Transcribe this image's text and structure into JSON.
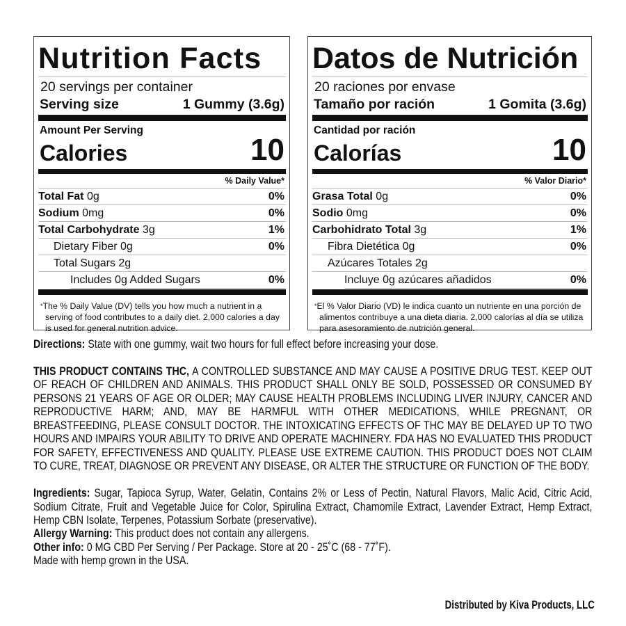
{
  "english": {
    "title": "Nutrition Facts",
    "servings": "20 servings per container",
    "serving_size_label": "Serving size",
    "serving_size_value": "1 Gummy (3.6g)",
    "amount_per_serving": "Amount Per Serving",
    "calories_label": "Calories",
    "calories_value": "10",
    "dv_header": "% Daily Value*",
    "rows": [
      {
        "label": "Total Fat",
        "amount": "0g",
        "dv": "0%"
      },
      {
        "label": "Sodium",
        "amount": "0mg",
        "dv": "0%"
      },
      {
        "label": "Total Carbohydrate",
        "amount": "3g",
        "dv": "1%"
      },
      {
        "label": "Dietary Fiber 0g",
        "dv": "0%"
      },
      {
        "label": "Total Sugars 2g"
      },
      {
        "label": "Includes 0g Added Sugars",
        "dv": "0%"
      }
    ],
    "footnote": "The % Daily Value (DV) tells you how much a nutrient in a serving of food contributes to a daily diet. 2,000 calories a day is used for general nutrition advice."
  },
  "spanish": {
    "title": "Datos de Nutrición",
    "servings": "20 raciones por envase",
    "serving_size_label": "Tamaño por ración",
    "serving_size_value": "1 Gomita (3.6g)",
    "amount_per_serving": "Cantidad por ración",
    "calories_label": "Calorías",
    "calories_value": "10",
    "dv_header": "% Valor Diario*",
    "rows": [
      {
        "label": "Grasa Total",
        "amount": "0g",
        "dv": "0%"
      },
      {
        "label": "Sodio",
        "amount": "0mg",
        "dv": "0%"
      },
      {
        "label": "Carbohidrato Total",
        "amount": "3g",
        "dv": "1%"
      },
      {
        "label": "Fibra Dietética 0g",
        "dv": "0%"
      },
      {
        "label": "Azúcares Totales 2g"
      },
      {
        "label": "Incluye 0g azúcares añadidos",
        "dv": "0%"
      }
    ],
    "footnote": "El % Valor Diario (VD) le indica cuanto un nutriente en una porción de alimentos contribuye a una dieta diaria. 2,000 calorías al día se utiliza para asesoramiento de nutrición general."
  },
  "directions": {
    "label": "Directions:",
    "text": "State with one gummy, wait two hours for full effect before increasing your dose."
  },
  "warning": {
    "label": "THIS PRODUCT CONTAINS THC,",
    "text": "A CONTROLLED SUBSTANCE AND MAY CAUSE A POSITIVE DRUG TEST. KEEP OUT OF REACH OF CHILDREN AND ANIMALS. THIS PRODUCT SHALL ONLY BE SOLD, POSSESSED OR CONSUMED BY PERSONS 21 YEARS OF AGE OR OLDER; MAY CAUSE HEALTH PROBLEMS INCLUDING LIVER INJURY, CANCER AND REPRODUCTIVE HARM; AND, MAY BE HARMFUL WITH OTHER MEDICATIONS, WHILE PREGNANT, OR BREASTFEEDING, PLEASE CONSULT DOCTOR. THE INTOXICATING EFFECTS OF THC MAY BE DELAYED UP TO TWO HOURS AND IMPAIRS YOUR ABILITY TO DRIVE AND OPERATE MACHINERY. FDA HAS NO EVALUATED THIS PRODUCT FOR SAFETY, EFFECTIVENESS AND QUALITY. PLEASE USE EXTREME CAUTION. THIS PRODUCT DOES NOT CLAIM TO CURE, TREAT, DIAGNOSE OR PREVENT ANY DISEASE, OR ALTER THE STRUCTURE OR FUNCTION OF THE BODY."
  },
  "ingredients": {
    "label": "Ingredients:",
    "text": "Sugar, Tapioca Syrup, Water, Gelatin, Contains 2% or Less of Pectin, Natural Flavors, Malic Acid, Citric Acid, Sodium Citrate, Fruit and Vegetable Juice for Color, Spirulina Extract, Chamomile Extract, Lavender Extract, Hemp Extract, Hemp CBN Isolate, Terpenes, Potassium Sorbate (preservative)."
  },
  "allergy": {
    "label": "Allergy Warning:",
    "text": "This product does not contain any allergens."
  },
  "other": {
    "label": "Other info:",
    "text": "0 MG CBD Per Serving / Per Package. Store at 20 - 25˚C (68 - 77˚F)."
  },
  "made_in": "Made with hemp grown in the USA.",
  "distributor": "Distributed by Kiva Products, LLC"
}
